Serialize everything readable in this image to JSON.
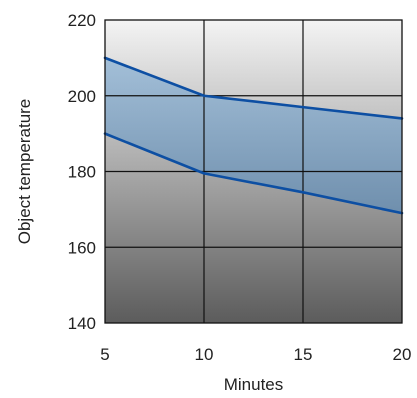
{
  "chart_data": {
    "type": "area",
    "xlabel": "Minutes",
    "ylabel": "Object temperature",
    "xlim": [
      5,
      20
    ],
    "ylim": [
      140,
      220
    ],
    "x_ticks": [
      5,
      10,
      15,
      20
    ],
    "y_ticks": [
      140,
      160,
      180,
      200,
      220
    ],
    "x_tick_labels": [
      "5",
      "10",
      "15",
      "20"
    ],
    "y_tick_labels": [
      "140",
      "160",
      "180",
      "200",
      "220"
    ],
    "grid": true,
    "legend": "none",
    "x": [
      5,
      10,
      15,
      20
    ],
    "series": [
      {
        "values": [
          210,
          200,
          197,
          194
        ]
      },
      {
        "values": [
          190,
          179.5,
          174.5,
          169
        ]
      }
    ],
    "band": {
      "upper_series": 0,
      "lower_series": 1
    },
    "colors": {
      "line": "#0d4fa3",
      "band_top": "#a3bfd8",
      "band_bottom": "#6f8fad",
      "background_top": "#f4f4f4",
      "background_bottom": "#5c5c5c",
      "grid": "#111111",
      "text": "#222222"
    }
  }
}
